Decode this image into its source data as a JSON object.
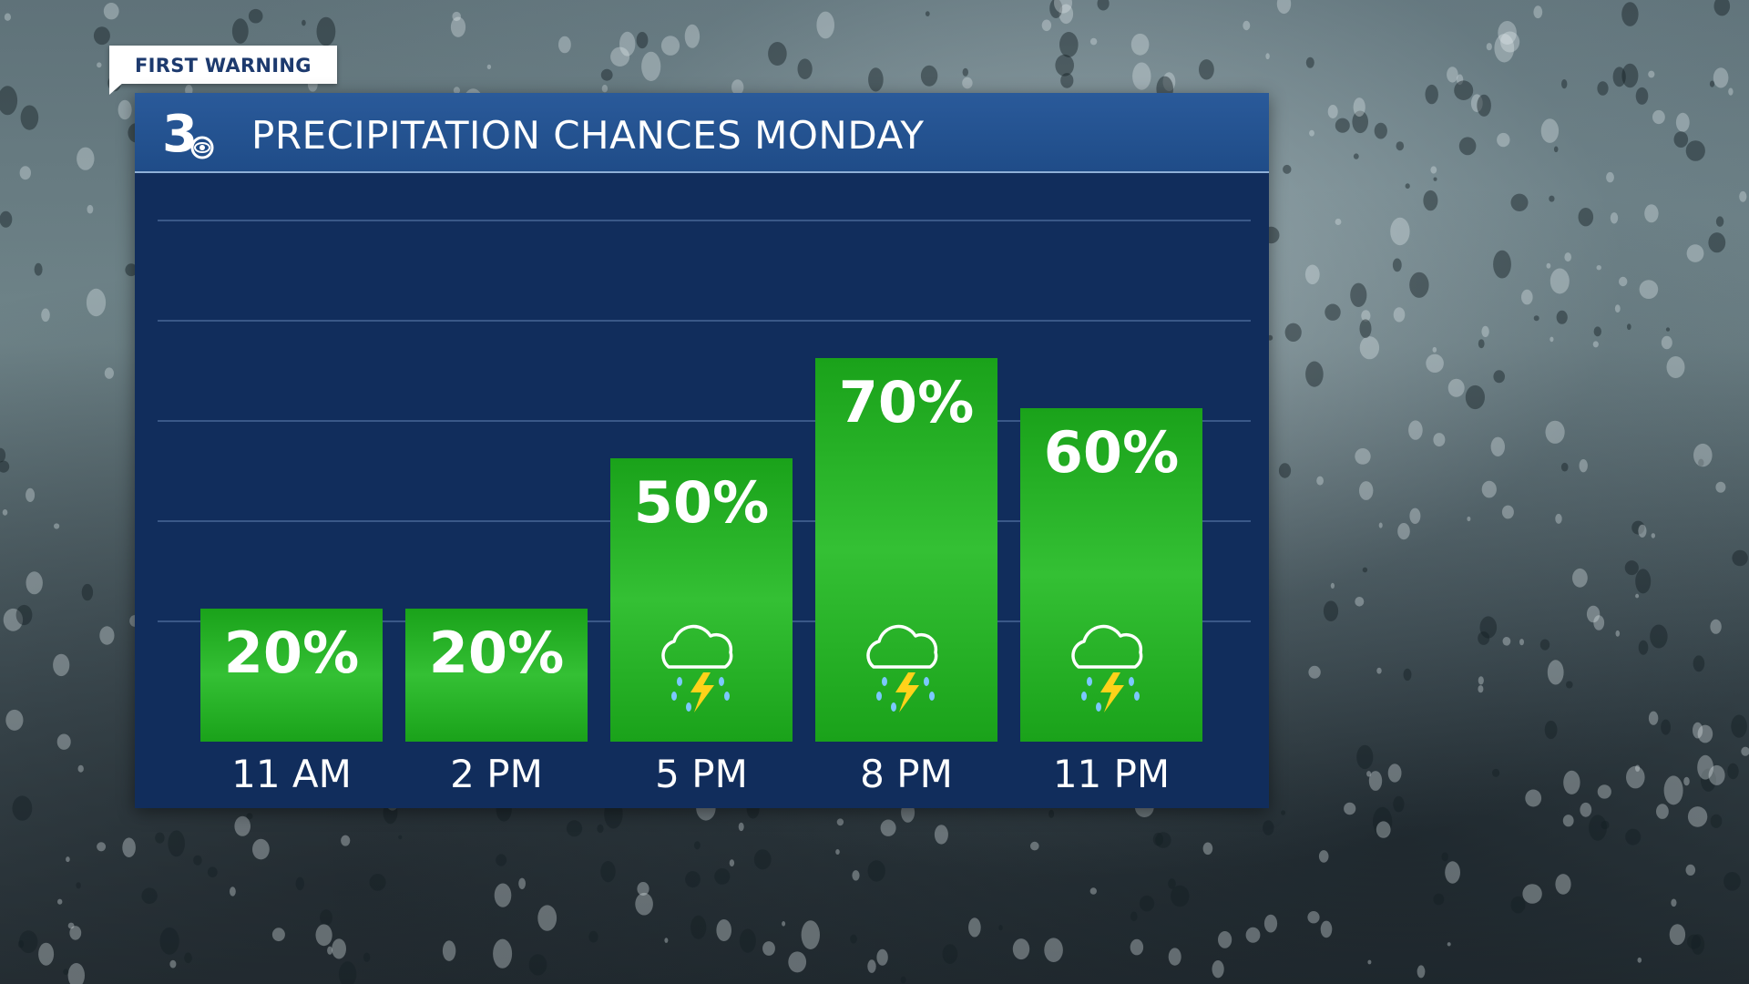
{
  "badge": {
    "label": "FIRST WARNING"
  },
  "header": {
    "title": "PRECIPITATION CHANCES MONDAY",
    "logo_icon": "channel-3-cbs-eye-logo"
  },
  "colors": {
    "panel": "#112d5c",
    "header": "#1f4c88",
    "bar": "#1aa21a",
    "bar_light": "#34c034",
    "text": "#ffffff",
    "badge_text": "#1d3a6e"
  },
  "chart_data": {
    "type": "bar",
    "title": "PRECIPITATION CHANCES MONDAY",
    "categories": [
      "11 AM",
      "2 PM",
      "5 PM",
      "8 PM",
      "11 PM"
    ],
    "values": [
      20,
      20,
      50,
      70,
      60
    ],
    "value_labels": [
      "20%",
      "20%",
      "50%",
      "70%",
      "60%"
    ],
    "icons": [
      "",
      "",
      "thunderstorm-icon",
      "thunderstorm-icon",
      "thunderstorm-icon"
    ],
    "ylim": [
      0,
      100
    ],
    "grid": true,
    "legend": "none"
  }
}
